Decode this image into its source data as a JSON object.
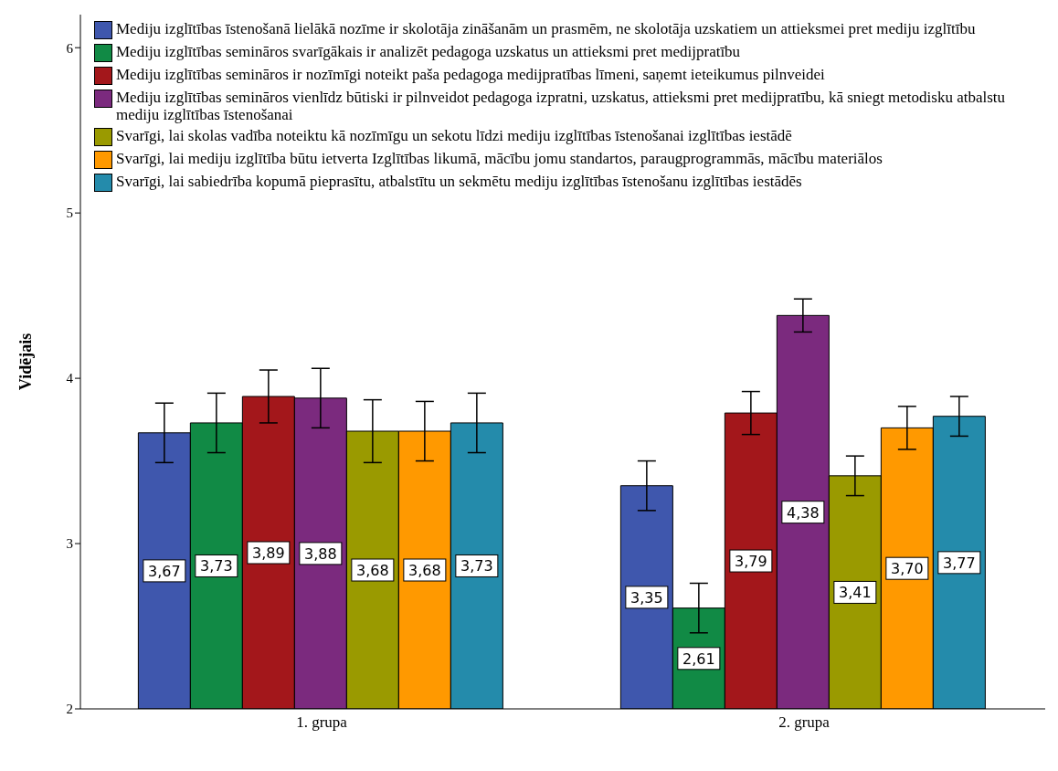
{
  "chart_data": {
    "type": "bar",
    "ylabel": "Vidējais",
    "categories": [
      "1. grupa",
      "2. grupa"
    ],
    "ylim": [
      2,
      6.2
    ],
    "yticks": [
      2,
      3,
      4,
      5,
      6
    ],
    "legend": "top",
    "grid": false,
    "series": [
      {
        "name": "Mediju izglītības īstenošanā lielākā nozīme ir skolotāja zināšanām un prasmēm, ne  skolotāja uzskatiem un  attieksmei pret mediju izglītību",
        "color": "#3f57ad",
        "values": [
          3.67,
          3.35
        ],
        "errors": [
          0.18,
          0.15
        ],
        "value_labels": [
          "3,67",
          "3,35"
        ]
      },
      {
        "name": "Mediju izglītības semināros svarīgākais ir analizēt pedagoga uzskatus un attieksmi pret medijpratību",
        "color": "#118a45",
        "values": [
          3.73,
          2.61
        ],
        "errors": [
          0.18,
          0.15
        ],
        "value_labels": [
          "3,73",
          "2,61"
        ]
      },
      {
        "name": "Mediju izglītības semināros ir nozīmīgi noteikt paša pedagoga medijpratības līmeni, saņemt ieteikumus pilnveidei",
        "color": "#a3171b",
        "values": [
          3.89,
          3.79
        ],
        "errors": [
          0.16,
          0.13
        ],
        "value_labels": [
          "3,89",
          "3,79"
        ]
      },
      {
        "name": "Mediju izglītības semināros vienlīdz būtiski ir pilnveidot pedagoga izpratni, uzskatus, attieksmi pret medijpratību, kā sniegt metodisku atbalstu mediju izglītības īstenošanai",
        "color": "#7b2a7e",
        "values": [
          3.88,
          4.38
        ],
        "errors": [
          0.18,
          0.1
        ],
        "value_labels": [
          "3,88",
          "4,38"
        ]
      },
      {
        "name": "Svarīgi, lai skolas vadība noteiktu kā nozīmīgu un sekotu līdzi mediju izglītības īstenošanai izglītības iestādē",
        "color": "#9a9a00",
        "values": [
          3.68,
          3.41
        ],
        "errors": [
          0.19,
          0.12
        ],
        "value_labels": [
          "3,68",
          "3,41"
        ]
      },
      {
        "name": "Svarīgi, lai mediju izglītība būtu ietverta Izglītības likumā, mācību jomu standartos, paraugprogrammās, mācību materiālos",
        "color": "#ff9900",
        "values": [
          3.68,
          3.7
        ],
        "errors": [
          0.18,
          0.13
        ],
        "value_labels": [
          "3,68",
          "3,70"
        ]
      },
      {
        "name": "Svarīgi, lai sabiedrība kopumā pieprasītu, atbalstītu un sekmētu mediju izglītības īstenošanu izglītības iestādēs",
        "color": "#248bab",
        "values": [
          3.73,
          3.77
        ],
        "errors": [
          0.18,
          0.12
        ],
        "value_labels": [
          "3,73",
          "3,77"
        ]
      }
    ]
  }
}
